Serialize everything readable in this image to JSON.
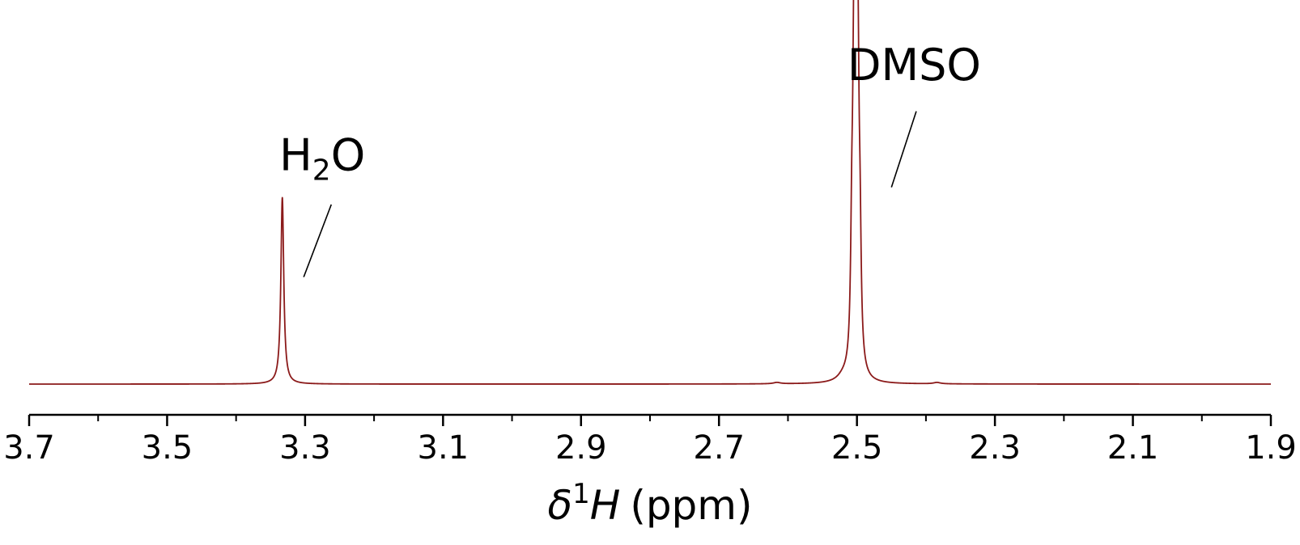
{
  "chart_data": {
    "type": "line",
    "title": "",
    "xlabel": {
      "delta": "δ",
      "superscript": "1",
      "nucleus": "H",
      "unit": "(ppm)"
    },
    "ylabel": "",
    "x_reversed": true,
    "xlim": [
      3.7,
      1.9
    ],
    "ylim": [
      0,
      1.0
    ],
    "x_major_ticks": [
      3.7,
      3.5,
      3.3,
      3.1,
      2.9,
      2.7,
      2.5,
      2.3,
      2.1,
      1.9
    ],
    "x_tick_labels": [
      "3.7",
      "3.5",
      "3.3",
      "3.1",
      "2.9",
      "2.7",
      "2.5",
      "2.3",
      "2.1",
      "1.9"
    ],
    "x_minor_ticks": [
      3.6,
      3.4,
      3.2,
      3.0,
      2.8,
      2.6,
      2.4,
      2.2,
      2.0
    ],
    "grid": false,
    "legend": "none",
    "series_color": "#8b1a1a",
    "peaks": [
      {
        "center": 3.333,
        "height": 0.54,
        "width": 0.0025
      },
      {
        "center": 2.616,
        "height": 0.004,
        "width": 0.006
      },
      {
        "center": 2.5075,
        "height": 0.3,
        "width": 0.002
      },
      {
        "center": 2.5045,
        "height": 0.72,
        "width": 0.002
      },
      {
        "center": 2.5015,
        "height": 1.0,
        "width": 0.002
      },
      {
        "center": 2.4985,
        "height": 0.69,
        "width": 0.002
      },
      {
        "center": 2.4955,
        "height": 0.28,
        "width": 0.002
      },
      {
        "center": 2.52,
        "height": 0.012,
        "width": 0.01
      },
      {
        "center": 2.384,
        "height": 0.004,
        "width": 0.006
      }
    ],
    "annotations": [
      {
        "name": "water",
        "main": "H",
        "sub": "2",
        "tail": "O",
        "x_label": 3.275,
        "y_label": 0.62,
        "line_from": [
          3.262,
          0.52
        ],
        "line_to": [
          3.302,
          0.31
        ]
      },
      {
        "name": "dmso",
        "text": "DMSO",
        "x_label": 2.417,
        "y_label": 0.88,
        "line_from": [
          2.414,
          0.79
        ],
        "line_to": [
          2.45,
          0.57
        ]
      }
    ]
  }
}
